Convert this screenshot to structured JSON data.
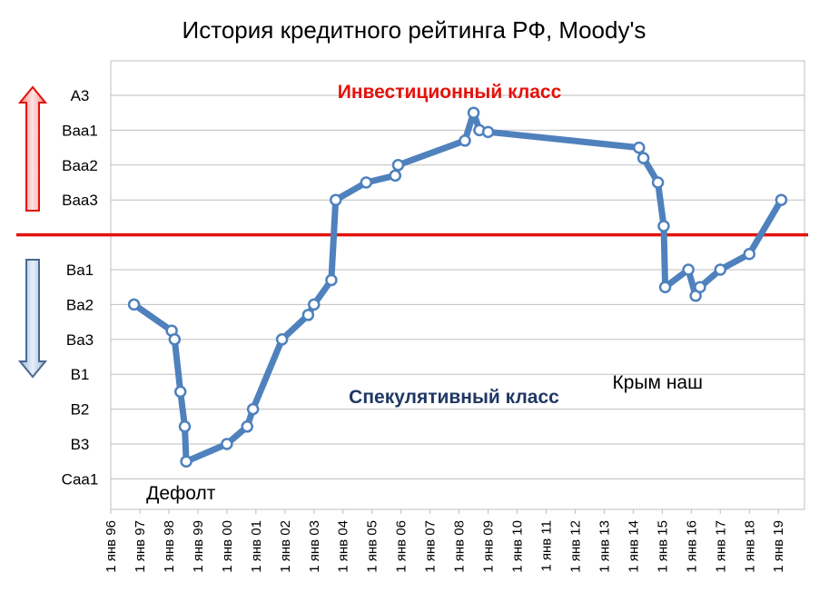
{
  "chart_data": {
    "type": "line",
    "title": "История кредитного рейтинга РФ, Moody's",
    "y_categories": [
      "A3",
      "Baa1",
      "Baa2",
      "Baa3",
      "",
      "Ba1",
      "Ba2",
      "Ba3",
      "B1",
      "B2",
      "B3",
      "Caa1"
    ],
    "x_tick_labels": [
      "1 янв 96",
      "1 янв 97",
      "1 янв 98",
      "1 янв 99",
      "1 янв 00",
      "1 янв 01",
      "1 янв 02",
      "1 янв 03",
      "1 янв 04",
      "1 янв 05",
      "1 янв 06",
      "1 янв 07",
      "1 янв 08",
      "1 янв 09",
      "1 янв 10",
      "1 янв 11",
      "1 янв 12",
      "1 янв 13",
      "1 янв 14",
      "1 янв 15",
      "1 янв 16",
      "1 янв 17",
      "1 янв 18",
      "1 янв 19"
    ],
    "x_range": [
      1996.0,
      2019.9
    ],
    "grid": "horizontal",
    "threshold_label_above": "Инвестиционный класс",
    "threshold_label_below": "Спекулятивный класс",
    "series": [
      {
        "color": "#4f81bd",
        "points": [
          {
            "x": 1996.8,
            "y": 6.0
          },
          {
            "x": 1998.1,
            "y": 6.75
          },
          {
            "x": 1998.2,
            "y": 7.0
          },
          {
            "x": 1998.4,
            "y": 8.5
          },
          {
            "x": 1998.55,
            "y": 9.5
          },
          {
            "x": 1998.6,
            "y": 10.5
          },
          {
            "x": 2000.0,
            "y": 10.0
          },
          {
            "x": 2000.7,
            "y": 9.5
          },
          {
            "x": 2000.9,
            "y": 9.0
          },
          {
            "x": 2001.9,
            "y": 7.0
          },
          {
            "x": 2002.8,
            "y": 6.3
          },
          {
            "x": 2003.0,
            "y": 6.0
          },
          {
            "x": 2003.6,
            "y": 5.3
          },
          {
            "x": 2003.75,
            "y": 3.0
          },
          {
            "x": 2004.8,
            "y": 2.5
          },
          {
            "x": 2005.8,
            "y": 2.3
          },
          {
            "x": 2005.9,
            "y": 2.0
          },
          {
            "x": 2008.2,
            "y": 1.3
          },
          {
            "x": 2008.5,
            "y": 0.5
          },
          {
            "x": 2008.7,
            "y": 1.0
          },
          {
            "x": 2009.0,
            "y": 1.05
          },
          {
            "x": 2014.2,
            "y": 1.5
          },
          {
            "x": 2014.35,
            "y": 1.8
          },
          {
            "x": 2014.85,
            "y": 2.5
          },
          {
            "x": 2015.05,
            "y": 3.75
          },
          {
            "x": 2015.1,
            "y": 5.5
          },
          {
            "x": 2015.9,
            "y": 5.0
          },
          {
            "x": 2016.15,
            "y": 5.75
          },
          {
            "x": 2016.3,
            "y": 5.5
          },
          {
            "x": 2017.0,
            "y": 5.0
          },
          {
            "x": 2018.0,
            "y": 4.55
          },
          {
            "x": 2019.1,
            "y": 3.0
          }
        ]
      }
    ],
    "threshold_color": "#e3120b",
    "annotations": [
      {
        "text": "Дефолт",
        "x": 1998.6,
        "y": 10.5
      },
      {
        "text": "Крым наш",
        "x": 2015.1,
        "y": 5.5
      }
    ]
  }
}
